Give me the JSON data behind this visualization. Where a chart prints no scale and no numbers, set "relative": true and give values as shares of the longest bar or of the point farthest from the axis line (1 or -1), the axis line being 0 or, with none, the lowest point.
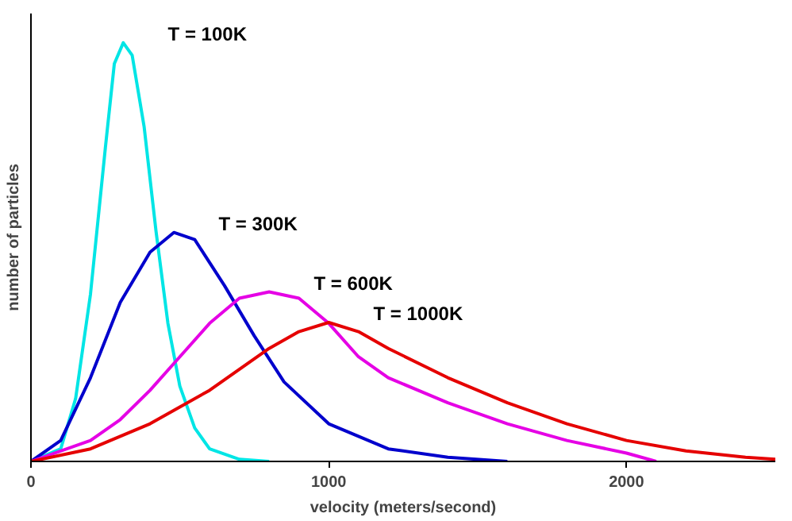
{
  "chart_data": {
    "type": "line",
    "relative": true,
    "xlabel": "velocity (meters/second)",
    "ylabel": "number of particles",
    "xlim": [
      0,
      2500
    ],
    "xticks": [
      0,
      1000,
      2000
    ],
    "tick_labels": "x",
    "grid": false,
    "legend": false,
    "series": [
      {
        "name": "T = 100K",
        "color": "#00e5e5",
        "x": [
          0,
          100,
          150,
          200,
          250,
          280,
          310,
          340,
          380,
          420,
          460,
          500,
          550,
          600,
          700,
          800
        ],
        "values": [
          0,
          0.03,
          0.15,
          0.4,
          0.75,
          0.95,
          1.0,
          0.97,
          0.8,
          0.55,
          0.33,
          0.18,
          0.08,
          0.03,
          0.005,
          0
        ]
      },
      {
        "name": "T = 300K",
        "color": "#0000cc",
        "x": [
          0,
          100,
          200,
          300,
          400,
          480,
          550,
          650,
          750,
          850,
          1000,
          1200,
          1400,
          1600
        ],
        "values": [
          0,
          0.05,
          0.2,
          0.38,
          0.5,
          0.547,
          0.53,
          0.42,
          0.3,
          0.19,
          0.09,
          0.03,
          0.01,
          0
        ]
      },
      {
        "name": "T = 600K",
        "color": "#e500e5",
        "x": [
          0,
          200,
          300,
          400,
          500,
          600,
          700,
          800,
          900,
          1000,
          1100,
          1200,
          1400,
          1600,
          1800,
          2000,
          2100
        ],
        "values": [
          0,
          0.05,
          0.1,
          0.17,
          0.25,
          0.33,
          0.39,
          0.405,
          0.39,
          0.33,
          0.25,
          0.2,
          0.14,
          0.09,
          0.05,
          0.02,
          0
        ]
      },
      {
        "name": "T = 1000K",
        "color": "#e50000",
        "x": [
          0,
          200,
          400,
          600,
          800,
          900,
          1000,
          1100,
          1200,
          1400,
          1600,
          1800,
          2000,
          2200,
          2400,
          2500
        ],
        "values": [
          0,
          0.03,
          0.09,
          0.17,
          0.27,
          0.31,
          0.332,
          0.31,
          0.27,
          0.2,
          0.14,
          0.09,
          0.05,
          0.025,
          0.01,
          0.005
        ]
      }
    ]
  }
}
